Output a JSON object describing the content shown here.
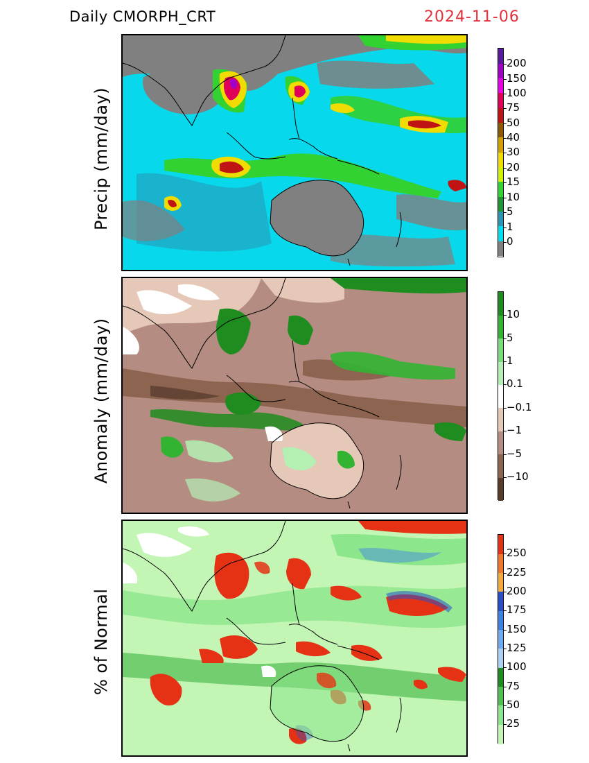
{
  "header": {
    "product": "Daily  CMORPH_CRT",
    "date": "2024-11-06"
  },
  "panels": [
    {
      "id": "precip",
      "ylabel": "Precip  (mm/day)",
      "legend": {
        "labels": [
          "200",
          "150",
          "100",
          "75",
          "50",
          "40",
          "30",
          "20",
          "15",
          "10",
          "5",
          "1",
          "0"
        ],
        "colors": [
          "#5a1aa0",
          "#a000c8",
          "#e800e8",
          "#e0005a",
          "#c01414",
          "#8c5a00",
          "#d2a000",
          "#f0dc00",
          "#d2f000",
          "#32d232",
          "#1e9632",
          "#2896b4",
          "#00dcf0",
          "#808080"
        ]
      }
    },
    {
      "id": "anomaly",
      "ylabel": "Anomaly  (mm/day)",
      "legend": {
        "labels": [
          "10",
          "5",
          "1",
          "0.1",
          "−0.1",
          "−1",
          "−5",
          "−10"
        ],
        "colors": [
          "#1e8c1e",
          "#32b432",
          "#78dc78",
          "#b4f0b4",
          "#ffffff",
          "#e6c8b9",
          "#b48c82",
          "#8c6450",
          "#5a3c2d"
        ]
      }
    },
    {
      "id": "percent",
      "ylabel": "%  of  Normal",
      "legend": {
        "labels": [
          "250",
          "225",
          "200",
          "175",
          "150",
          "125",
          "100",
          "75",
          "50",
          "25"
        ],
        "colors": [
          "#e63214",
          "#f07828",
          "#f5aa3c",
          "#2850c8",
          "#3c82e6",
          "#6eaaf0",
          "#aad2f5",
          "#1e8c1e",
          "#50be50",
          "#8ce68c",
          "#c3f5b4"
        ]
      }
    }
  ]
}
